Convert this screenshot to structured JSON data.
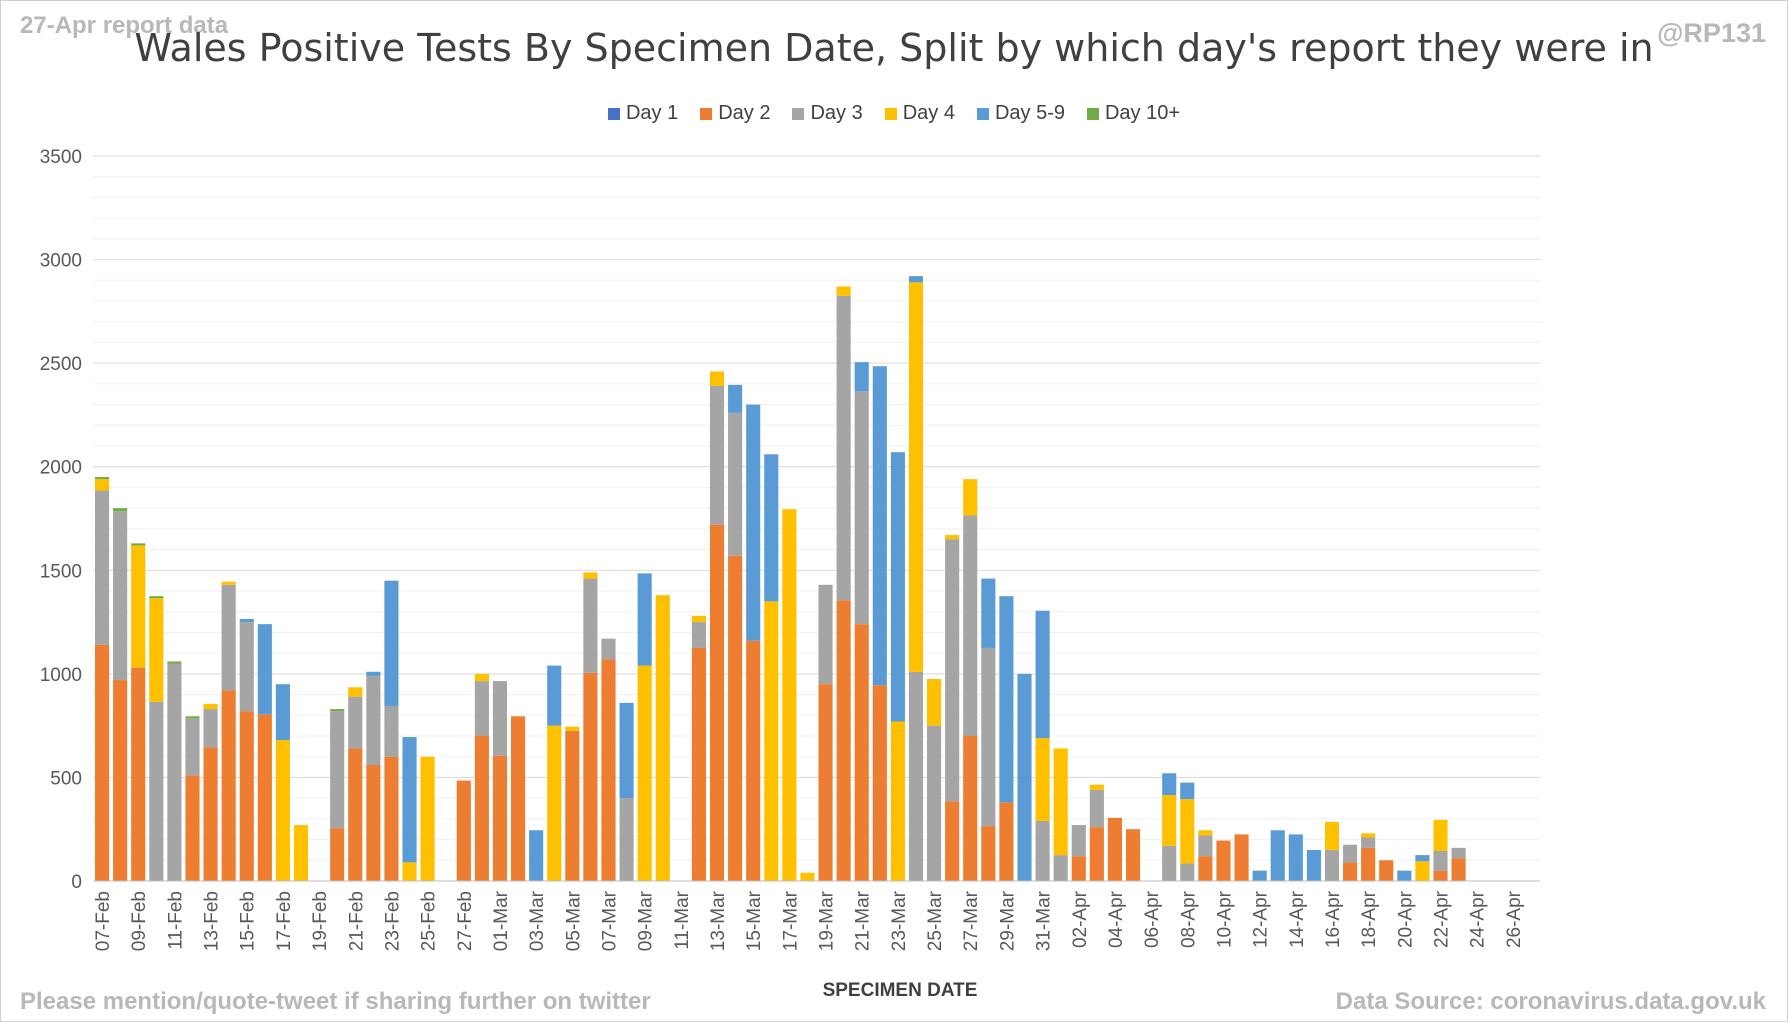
{
  "header": {
    "report_label": "27-Apr report data",
    "handle": "@RP131",
    "footer_left": "Please mention/quote-tweet if sharing further on twitter",
    "footer_right": "Data Source: coronavirus.data.gov.uk"
  },
  "chart_data": {
    "type": "bar",
    "stacked": true,
    "title": "Wales Positive Tests By Specimen Date, Split by which day's report they were in",
    "xlabel": "SPECIMEN DATE",
    "ylabel": "",
    "ylim": [
      0,
      3500
    ],
    "yticks": [
      0,
      500,
      1000,
      1500,
      2000,
      2500,
      3000,
      3500
    ],
    "grid": true,
    "legend_position": "top",
    "series": [
      {
        "name": "Day 1",
        "color": "#4472c4",
        "values": [
          0,
          0,
          0,
          0,
          0,
          0,
          0,
          0,
          0,
          0,
          0,
          0,
          0,
          0,
          0,
          0,
          0,
          0,
          0,
          0,
          0,
          0,
          0,
          0,
          0,
          0,
          0,
          0,
          0,
          0,
          0,
          0,
          0,
          0,
          0,
          0,
          0,
          0,
          0,
          0,
          0,
          0,
          0,
          0,
          0,
          0,
          0,
          0,
          0,
          0,
          0,
          0,
          0,
          0,
          0,
          0,
          0,
          0,
          0,
          0,
          0,
          0,
          0,
          0,
          0,
          0,
          0,
          0,
          0,
          0,
          0,
          0,
          0,
          0,
          0,
          0,
          0,
          0,
          0,
          0
        ]
      },
      {
        "name": "Day 2",
        "color": "#ed7d31",
        "values": [
          1140,
          970,
          1030,
          0,
          0,
          510,
          645,
          920,
          820,
          805,
          0,
          0,
          0,
          255,
          640,
          560,
          600,
          0,
          0,
          0,
          485,
          700,
          605,
          795,
          0,
          0,
          725,
          1005,
          1070,
          0,
          0,
          0,
          0,
          1125,
          1720,
          1570,
          1160,
          0,
          0,
          0,
          950,
          1355,
          1240,
          945,
          0,
          0,
          0,
          385,
          700,
          265,
          380,
          0,
          0,
          0,
          120,
          260,
          305,
          250,
          0,
          0,
          0,
          120,
          195,
          225,
          0,
          0,
          0,
          0,
          0,
          90,
          160,
          100,
          0,
          0,
          50,
          110,
          0
        ]
      },
      {
        "name": "Day 3",
        "color": "#a5a5a5",
        "values": [
          745,
          815,
          0,
          865,
          1050,
          275,
          185,
          510,
          430,
          0,
          0,
          0,
          0,
          565,
          250,
          430,
          245,
          0,
          0,
          0,
          0,
          265,
          360,
          0,
          0,
          0,
          0,
          455,
          100,
          400,
          0,
          0,
          0,
          125,
          670,
          690,
          0,
          0,
          0,
          0,
          480,
          1470,
          1125,
          0,
          0,
          1010,
          750,
          1265,
          1065,
          860,
          0,
          0,
          290,
          125,
          150,
          180,
          0,
          0,
          0,
          170,
          85,
          100,
          0,
          0,
          0,
          0,
          0,
          0,
          150,
          85,
          50,
          0,
          0,
          0,
          95,
          50,
          0
        ]
      },
      {
        "name": "Day 4",
        "color": "#ffc000",
        "values": [
          55,
          0,
          590,
          500,
          0,
          0,
          25,
          15,
          0,
          0,
          680,
          270,
          0,
          0,
          45,
          0,
          0,
          90,
          600,
          0,
          0,
          35,
          0,
          0,
          0,
          750,
          20,
          30,
          0,
          0,
          1040,
          1380,
          0,
          30,
          70,
          0,
          0,
          1350,
          1795,
          40,
          0,
          45,
          0,
          0,
          770,
          1880,
          225,
          20,
          175,
          0,
          0,
          0,
          400,
          515,
          0,
          25,
          0,
          0,
          0,
          245,
          310,
          25,
          0,
          0,
          0,
          0,
          0,
          0,
          135,
          0,
          20,
          0,
          0,
          95,
          150,
          0,
          0
        ]
      },
      {
        "name": "Day 5-9",
        "color": "#5b9bd5",
        "values": [
          0,
          0,
          0,
          0,
          0,
          0,
          0,
          0,
          15,
          435,
          270,
          0,
          0,
          0,
          0,
          20,
          605,
          605,
          0,
          0,
          0,
          0,
          0,
          0,
          245,
          290,
          0,
          0,
          0,
          460,
          445,
          0,
          0,
          0,
          0,
          135,
          1140,
          710,
          0,
          0,
          0,
          0,
          140,
          1540,
          1300,
          30,
          0,
          0,
          0,
          335,
          995,
          1000,
          615,
          0,
          0,
          0,
          0,
          0,
          0,
          105,
          80,
          0,
          0,
          0,
          50,
          245,
          225,
          150,
          0,
          0,
          0,
          0,
          50,
          30,
          0,
          0,
          0
        ]
      },
      {
        "name": "Day 10+",
        "color": "#70ad47",
        "values": [
          10,
          15,
          10,
          10,
          10,
          10,
          0,
          0,
          0,
          0,
          0,
          0,
          0,
          10,
          0,
          0,
          0,
          0,
          0,
          0,
          0,
          0,
          0,
          0,
          0,
          0,
          0,
          0,
          0,
          0,
          0,
          0,
          0,
          0,
          0,
          0,
          0,
          0,
          0,
          0,
          0,
          0,
          0,
          0,
          0,
          0,
          0,
          0,
          0,
          0,
          0,
          0,
          0,
          0,
          0,
          0,
          0,
          0,
          0,
          0,
          0,
          0,
          0,
          0,
          0,
          0,
          0,
          0,
          0,
          0,
          0,
          0,
          0,
          0,
          0,
          0,
          0
        ]
      }
    ],
    "x_tick_labels": [
      "07-Feb",
      "09-Feb",
      "11-Feb",
      "13-Feb",
      "15-Feb",
      "17-Feb",
      "19-Feb",
      "21-Feb",
      "23-Feb",
      "25-Feb",
      "27-Feb",
      "01-Mar",
      "03-Mar",
      "05-Mar",
      "07-Mar",
      "09-Mar",
      "11-Mar",
      "13-Mar",
      "15-Mar",
      "17-Mar",
      "19-Mar",
      "21-Mar",
      "23-Mar",
      "25-Mar",
      "27-Mar",
      "29-Mar",
      "31-Mar",
      "02-Apr",
      "04-Apr",
      "06-Apr",
      "08-Apr",
      "10-Apr",
      "12-Apr",
      "14-Apr",
      "16-Apr",
      "18-Apr",
      "20-Apr",
      "22-Apr",
      "24-Apr",
      "26-Apr"
    ]
  }
}
